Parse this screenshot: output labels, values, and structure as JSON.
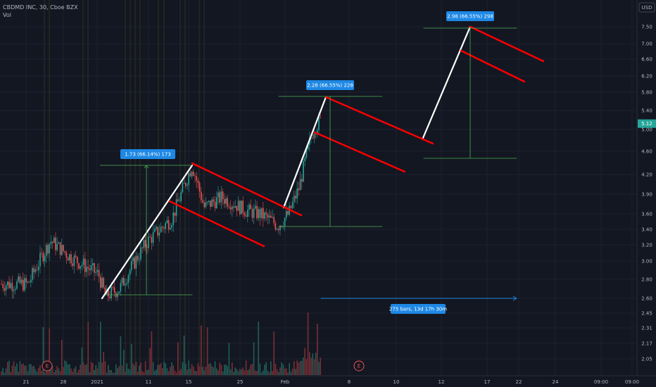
{
  "header": {
    "title": "CBDMD INC, 30, Cboe BZX",
    "volume_label": "Vol"
  },
  "currency_button": "USD",
  "chart_data": {
    "type": "candlestick",
    "symbol": "CBDMD INC",
    "interval": "30",
    "exchange": "Cboe BZX",
    "currency": "USD",
    "ylim": [
      1.95,
      7.75
    ],
    "y_scale": "log",
    "y_ticks": [
      "7.50",
      "7.00",
      "6.60",
      "6.20",
      "5.80",
      "5.40",
      "5.00",
      "4.60",
      "4.20",
      "3.90",
      "3.60",
      "3.40",
      "3.20",
      "3.00",
      "2.80",
      "2.60",
      "2.45",
      "2.31",
      "2.17",
      "2.05"
    ],
    "x_ticks": [
      "21",
      "28",
      "2021",
      "11",
      "15",
      "25",
      "Feb",
      "8",
      "10",
      "12",
      "17",
      "22",
      "24",
      "09:00",
      "09:00"
    ],
    "last_price": "5.12",
    "annotations": [
      {
        "type": "price_range",
        "label": "1.73 (66.14%) 173"
      },
      {
        "type": "price_range",
        "label": "2.28 (66.55%) 228"
      },
      {
        "type": "price_range",
        "label": "2.98 (66.55%) 298"
      },
      {
        "type": "date_range",
        "label": "275 bars, 13d 17h 30m"
      }
    ],
    "event_markers": [
      "E",
      "E"
    ],
    "colors": {
      "up": "#26a69a",
      "down": "#ef5350",
      "pole": "#ffffff",
      "channel": "#ff0000",
      "measure": "#4caf50",
      "badge": "#1e88e5",
      "background": "#131722"
    }
  }
}
